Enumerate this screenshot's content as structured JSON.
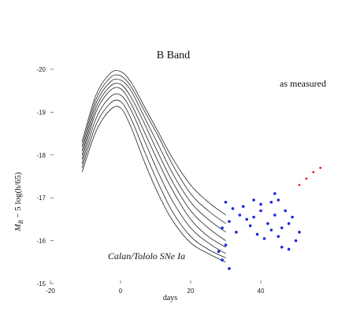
{
  "chart_data": {
    "type": "scatter",
    "title": "B Band",
    "xlabel": "days",
    "ylabel": "M_B − 5 log(h/65)",
    "ylabel_display": "M",
    "ylabel_sub": "B",
    "ylabel_rest": " − 5 log(h/65)",
    "xlim": [
      -20,
      60
    ],
    "ylim": [
      -15,
      -20
    ],
    "x_ticks": [
      -20,
      0,
      20,
      40
    ],
    "x_tick_labels": [
      "-20",
      "0",
      "20",
      "40"
    ],
    "y_ticks": [
      -20,
      -19,
      -18,
      -17,
      -16,
      -15
    ],
    "y_tick_labels": [
      "-20",
      "-19",
      "-18",
      "-17",
      "-16",
      "-15"
    ],
    "annotations": [
      "as measured",
      "Calan/Tololo SNe Ia"
    ],
    "series": [
      {
        "kind": "templates",
        "curves": [
          {
            "x": [
              -11,
              -7,
              -3,
              0,
              3,
              7,
              11,
              15,
              20,
              25,
              30
            ],
            "y": [
              -18.3,
              -19.4,
              -19.9,
              -19.95,
              -19.7,
              -19.1,
              -18.5,
              -17.9,
              -17.3,
              -16.9,
              -16.6
            ]
          },
          {
            "x": [
              -11,
              -7,
              -3,
              0,
              3,
              7,
              11,
              15,
              20,
              25,
              30
            ],
            "y": [
              -18.2,
              -19.3,
              -19.8,
              -19.85,
              -19.6,
              -19.0,
              -18.4,
              -17.75,
              -17.1,
              -16.7,
              -16.4
            ]
          },
          {
            "x": [
              -11,
              -7,
              -3,
              0,
              3,
              7,
              11,
              15,
              20,
              25,
              30
            ],
            "y": [
              -18.1,
              -19.2,
              -19.7,
              -19.75,
              -19.5,
              -18.85,
              -18.2,
              -17.55,
              -16.9,
              -16.5,
              -16.2
            ]
          },
          {
            "x": [
              -11,
              -7,
              -3,
              0,
              3,
              7,
              11,
              15,
              20,
              25,
              30
            ],
            "y": [
              -18.0,
              -19.1,
              -19.6,
              -19.65,
              -19.35,
              -18.7,
              -18.0,
              -17.35,
              -16.7,
              -16.3,
              -16.0
            ]
          },
          {
            "x": [
              -11,
              -7,
              -3,
              0,
              3,
              7,
              11,
              15,
              20,
              25,
              30
            ],
            "y": [
              -17.9,
              -19.0,
              -19.5,
              -19.55,
              -19.2,
              -18.5,
              -17.8,
              -17.15,
              -16.5,
              -16.1,
              -15.85
            ]
          },
          {
            "x": [
              -11,
              -7,
              -3,
              0,
              3,
              7,
              11,
              15,
              20,
              25,
              30
            ],
            "y": [
              -17.8,
              -18.85,
              -19.35,
              -19.4,
              -19.05,
              -18.3,
              -17.55,
              -16.9,
              -16.3,
              -15.95,
              -15.7
            ]
          },
          {
            "x": [
              -11,
              -7,
              -3,
              0,
              3,
              7,
              11,
              15,
              20,
              25,
              30
            ],
            "y": [
              -17.7,
              -18.7,
              -19.2,
              -19.25,
              -18.85,
              -18.05,
              -17.3,
              -16.65,
              -16.1,
              -15.8,
              -15.6
            ]
          },
          {
            "x": [
              -11,
              -7,
              -3,
              0,
              3,
              7,
              11,
              15,
              20,
              25,
              30
            ],
            "y": [
              -17.6,
              -18.55,
              -19.05,
              -19.1,
              -18.65,
              -17.8,
              -17.05,
              -16.45,
              -15.95,
              -15.7,
              -15.5
            ]
          }
        ]
      },
      {
        "kind": "points",
        "points": [
          [
            30,
            -16.9
          ],
          [
            32,
            -16.75
          ],
          [
            34,
            -16.6
          ],
          [
            35,
            -16.8
          ],
          [
            36,
            -16.5
          ],
          [
            38,
            -16.55
          ],
          [
            40,
            -16.7
          ],
          [
            42,
            -16.4
          ],
          [
            44,
            -16.6
          ],
          [
            46,
            -16.3
          ],
          [
            29,
            -16.3
          ],
          [
            31,
            -16.45
          ],
          [
            33,
            -16.2
          ],
          [
            37,
            -16.35
          ],
          [
            39,
            -16.15
          ],
          [
            41,
            -16.05
          ],
          [
            43,
            -16.25
          ],
          [
            45,
            -16.1
          ],
          [
            48,
            -16.4
          ],
          [
            50,
            -16.0
          ],
          [
            28,
            -15.75
          ],
          [
            29,
            -15.55
          ],
          [
            30,
            -15.9
          ],
          [
            31,
            -15.35
          ],
          [
            38,
            -16.95
          ],
          [
            40,
            -16.85
          ],
          [
            43,
            -16.9
          ],
          [
            47,
            -16.7
          ],
          [
            46,
            -15.85
          ],
          [
            48,
            -15.8
          ],
          [
            49,
            -16.55
          ],
          [
            51,
            -16.2
          ],
          [
            44,
            -17.1
          ],
          [
            45,
            -16.95
          ]
        ]
      },
      {
        "kind": "outliers",
        "points": [
          [
            51,
            -17.3
          ],
          [
            53,
            -17.45
          ],
          [
            55,
            -17.6
          ],
          [
            57,
            -17.7
          ]
        ]
      }
    ]
  }
}
